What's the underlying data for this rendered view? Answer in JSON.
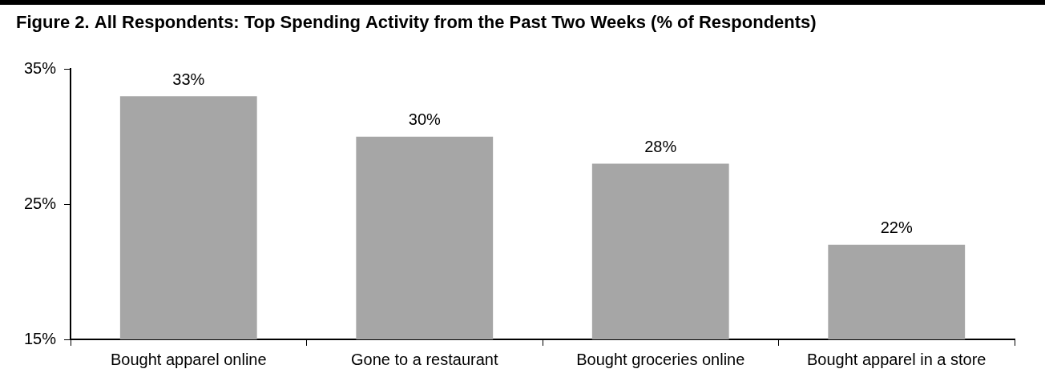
{
  "chart_data": {
    "type": "bar",
    "title": "Figure 2. All Respondents: Top Spending Activity from the Past Two Weeks (% of Respondents)",
    "categories": [
      "Bought apparel online",
      "Gone to a restaurant",
      "Bought groceries online",
      "Bought apparel in a store"
    ],
    "values": [
      33,
      30,
      28,
      22
    ],
    "value_labels": [
      "33%",
      "30%",
      "28%",
      "22%"
    ],
    "color": "#a6a6a6",
    "ylim": [
      15,
      35
    ],
    "yticks": [
      {
        "value": 15,
        "label": "15%"
      },
      {
        "value": 25,
        "label": "25%"
      },
      {
        "value": 35,
        "label": "35%"
      }
    ],
    "grid": false,
    "data_labels": true
  }
}
